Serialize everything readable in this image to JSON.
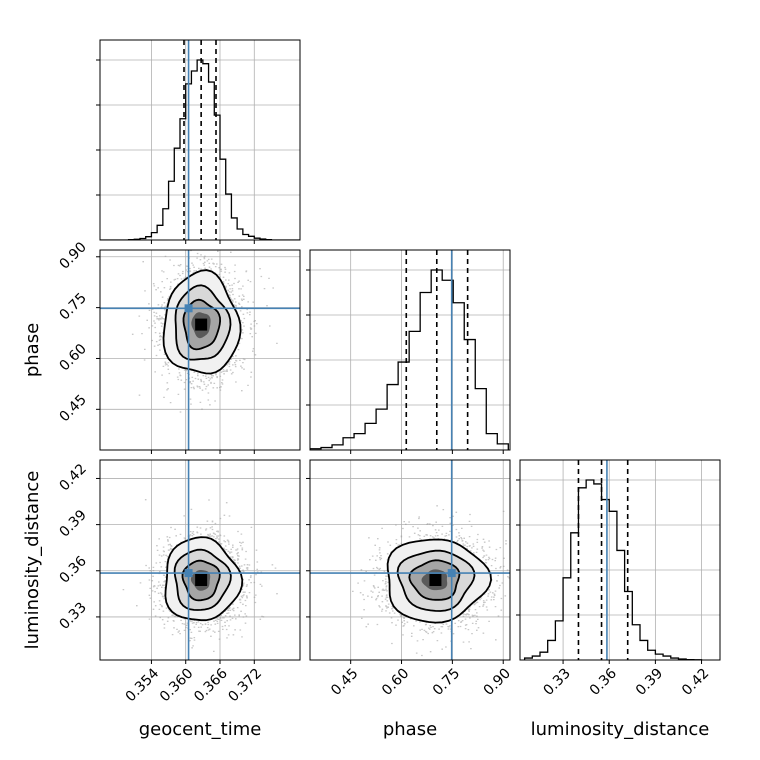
{
  "chart_data": {
    "type": "corner",
    "parameters": [
      "geocent_time",
      "phase",
      "luminosity_distance"
    ],
    "truths": [
      0.3605,
      0.748,
      0.3585
    ],
    "truth_color": "#4682b4",
    "ranges": [
      [
        0.345,
        0.38
      ],
      [
        0.33,
        0.92
      ],
      [
        0.302,
        0.432
      ]
    ],
    "ticks": [
      {
        "values": [
          0.354,
          0.36,
          0.366,
          0.372
        ],
        "labels": [
          "0.354",
          "0.360",
          "0.366",
          "0.372"
        ]
      },
      {
        "values": [
          0.45,
          0.6,
          0.75,
          0.9
        ],
        "labels": [
          "0.45",
          "0.60",
          "0.75",
          "0.90"
        ]
      },
      {
        "values": [
          0.33,
          0.36,
          0.39,
          0.42
        ],
        "labels": [
          "0.33",
          "0.36",
          "0.39",
          "0.42"
        ]
      }
    ],
    "axis_labels": {
      "x": [
        "geocent_time",
        "phase",
        "luminosity_distance"
      ],
      "y_row1": "phase",
      "y_row2": "luminosity_distance"
    },
    "quantiles": [
      [
        0.3597,
        0.3627,
        0.3653
      ],
      [
        0.614,
        0.704,
        0.795
      ],
      [
        0.34,
        0.355,
        0.372
      ]
    ],
    "histograms": [
      {
        "param": "geocent_time",
        "bin_edges": [
          0.345,
          0.346,
          0.347,
          0.348,
          0.349,
          0.35,
          0.351,
          0.352,
          0.353,
          0.354,
          0.355,
          0.356,
          0.357,
          0.358,
          0.359,
          0.36,
          0.361,
          0.362,
          0.363,
          0.364,
          0.365,
          0.366,
          0.367,
          0.368,
          0.369,
          0.37,
          0.371,
          0.372,
          0.373,
          0.374,
          0.375,
          0.376,
          0.377,
          0.378,
          0.379,
          0.38
        ],
        "counts": [
          0,
          0,
          0,
          0,
          0,
          0.002,
          0.004,
          0.008,
          0.018,
          0.04,
          0.08,
          0.17,
          0.32,
          0.5,
          0.66,
          0.85,
          0.92,
          0.98,
          0.96,
          0.86,
          0.68,
          0.44,
          0.25,
          0.12,
          0.06,
          0.03,
          0.02,
          0.01,
          0.005,
          0.002,
          0,
          0,
          0,
          0,
          0
        ]
      },
      {
        "param": "phase",
        "bin_edges": [
          0.33,
          0.3625,
          0.395,
          0.4275,
          0.46,
          0.4925,
          0.525,
          0.5575,
          0.59,
          0.6225,
          0.655,
          0.6875,
          0.72,
          0.7525,
          0.785,
          0.8175,
          0.85,
          0.8825,
          0.915
        ],
        "counts": [
          0.006,
          0.012,
          0.025,
          0.06,
          0.08,
          0.13,
          0.2,
          0.32,
          0.43,
          0.58,
          0.77,
          0.88,
          0.83,
          0.72,
          0.54,
          0.3,
          0.08,
          0.03
        ]
      },
      {
        "param": "luminosity_distance",
        "bin_edges": [
          0.305,
          0.31,
          0.315,
          0.32,
          0.325,
          0.33,
          0.335,
          0.34,
          0.345,
          0.35,
          0.355,
          0.36,
          0.365,
          0.37,
          0.375,
          0.38,
          0.385,
          0.39,
          0.395,
          0.4,
          0.405,
          0.41,
          0.415,
          0.42
        ],
        "counts": [
          0.01,
          0.02,
          0.04,
          0.1,
          0.2,
          0.42,
          0.65,
          0.88,
          0.92,
          0.9,
          0.82,
          0.76,
          0.56,
          0.35,
          0.18,
          0.1,
          0.05,
          0.03,
          0.02,
          0.01,
          0.005,
          0.002,
          0.001
        ]
      }
    ],
    "joint_distributions": [
      {
        "x": "geocent_time",
        "y": "phase",
        "center": [
          0.3627,
          0.7
        ],
        "spread": [
          0.0033,
          0.075
        ]
      },
      {
        "x": "geocent_time",
        "y": "luminosity_distance",
        "center": [
          0.3627,
          0.354
        ],
        "spread": [
          0.0033,
          0.0135
        ]
      },
      {
        "x": "phase",
        "y": "luminosity_distance",
        "center": [
          0.7,
          0.354
        ],
        "spread": [
          0.075,
          0.0135
        ]
      }
    ],
    "grid": true,
    "legend": "none"
  }
}
